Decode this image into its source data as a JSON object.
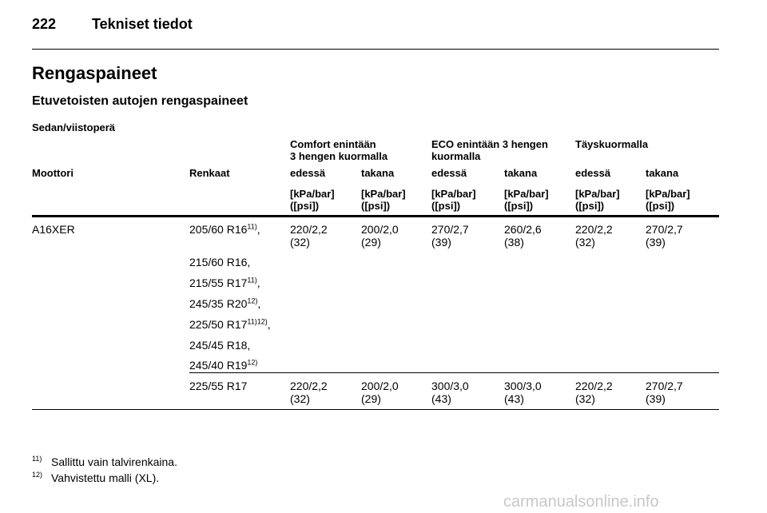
{
  "header": {
    "page_number": "222",
    "title": "Tekniset tiedot"
  },
  "heading": "Rengaspaineet",
  "subheading": "Etuvetoisten autojen rengaspaineet",
  "section": "Sedan/viistoperä",
  "table": {
    "groups": [
      [
        "Comfort enintään",
        "3 hengen kuormalla"
      ],
      [
        "ECO enintään 3 hengen",
        "kuormalla"
      ],
      [
        "Täyskuormalla"
      ]
    ],
    "columns": [
      "Moottori",
      "Renkaat",
      "edessä",
      "takana",
      "edessä",
      "takana",
      "edessä",
      "takana"
    ],
    "units": [
      [
        "[kPa/bar]",
        "([psi])"
      ],
      [
        "[kPa/bar]",
        "([psi])"
      ],
      [
        "[kPa/bar]",
        "([psi])"
      ],
      [
        "[kPa/bar]",
        "([psi])"
      ],
      [
        "[kPa/bar]",
        "([psi])"
      ],
      [
        "[kPa/bar]",
        "([psi])"
      ]
    ],
    "rows": [
      {
        "engine": "A16XER",
        "tires": [
          {
            "text": "205/60 R16",
            "note": "11)",
            "suffix": ","
          },
          {
            "text": "215/60 R16,"
          },
          {
            "text": "215/55 R17",
            "note": "11)",
            "suffix": ","
          },
          {
            "text": "245/35 R20",
            "note": "12)",
            "suffix": ","
          },
          {
            "text": "225/50 R17",
            "note": "11)12)",
            "suffix": ","
          },
          {
            "text": "245/45 R18,"
          },
          {
            "text": "245/40 R19",
            "note": "12)"
          }
        ],
        "values": [
          [
            "220/2,2",
            "(32)"
          ],
          [
            "200/2,0",
            "(29)"
          ],
          [
            "270/2,7",
            "(39)"
          ],
          [
            "260/2,6",
            "(38)"
          ],
          [
            "220/2,2",
            "(32)"
          ],
          [
            "270/2,7",
            "(39)"
          ]
        ]
      },
      {
        "tires": [
          {
            "text": "225/55 R17"
          }
        ],
        "values": [
          [
            "220/2,2",
            "(32)"
          ],
          [
            "200/2,0",
            "(29)"
          ],
          [
            "300/3,0",
            "(43)"
          ],
          [
            "300/3,0",
            "(43)"
          ],
          [
            "220/2,2",
            "(32)"
          ],
          [
            "270/2,7",
            "(39)"
          ]
        ]
      }
    ]
  },
  "footnotes": [
    {
      "marker": "11)",
      "text": "Sallittu vain talvirenkaina."
    },
    {
      "marker": "12)",
      "text": "Vahvistettu malli (XL)."
    }
  ],
  "watermark": "carmanualsonline.info"
}
